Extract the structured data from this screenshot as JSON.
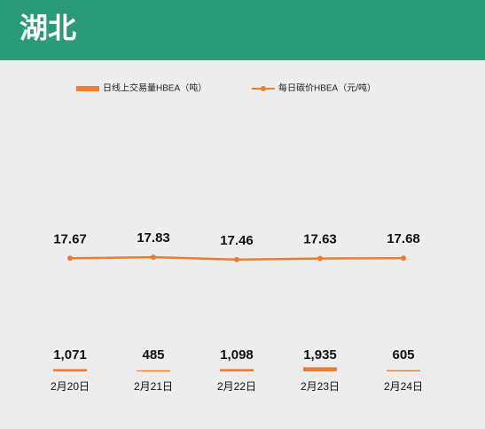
{
  "chart_data": {
    "type": "bar",
    "title": "湖北",
    "categories": [
      "2月20日",
      "2月21日",
      "2月22日",
      "2月23日",
      "2月24日"
    ],
    "series": [
      {
        "name": "日线上交易量HBEA（吨）",
        "type": "bar",
        "color": "#ed7d31",
        "values": [
          1071,
          485,
          1098,
          1935,
          605
        ],
        "value_labels": [
          "1,071",
          "485",
          "1,098",
          "1,935",
          "605"
        ]
      },
      {
        "name": "每日碳价HBEA（元/吨）",
        "type": "line",
        "axis": "y2",
        "color": "#ed7d31",
        "values": [
          17.67,
          17.83,
          17.46,
          17.63,
          17.68
        ]
      }
    ],
    "ylim": [
      0,
      120000
    ],
    "y2lim": [
      0,
      40
    ],
    "grid": false,
    "legend": "top"
  }
}
